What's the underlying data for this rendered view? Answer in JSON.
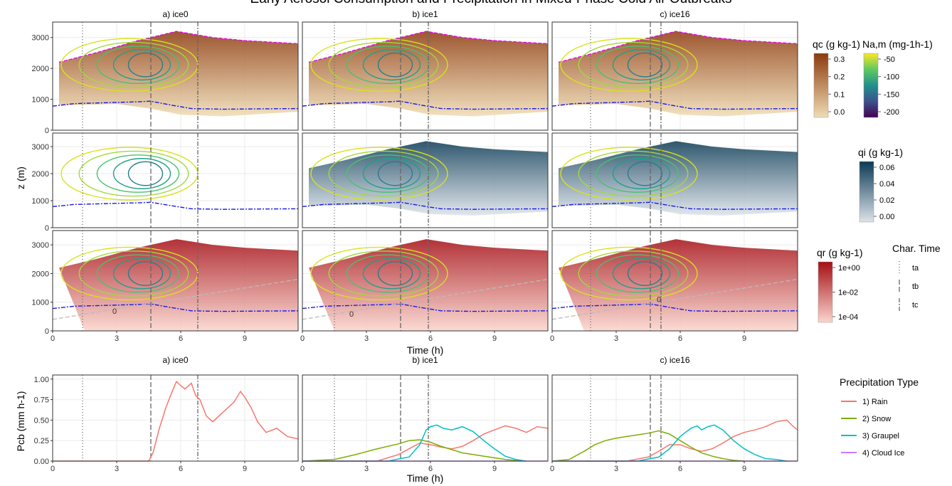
{
  "title": "Early Aerosol Consumption and Precipitation in Mixed-Phase Cold Air Outbreaks",
  "colors": {
    "clip_magenta": "#e600e6",
    "inversion_blue": "#1a1ae6",
    "rain": "#f8766d",
    "snow": "#7cae00",
    "graupel": "#00bfc4",
    "cloud_ice": "#c77cff",
    "qc_low": "#f0dcb4",
    "qc_high": "#8c3a0c",
    "qi_low": "#dde3ea",
    "qi_high": "#0b3a55",
    "qr_low": "#fbd4cc",
    "qr_high": "#a50f15"
  },
  "chart_data": [
    {
      "type": "heatmap",
      "panel": "contour grid (3 rows x 3 simulations)",
      "columns": [
        "a) ice0",
        "b) ice1",
        "c) ice16"
      ],
      "rows": [
        "qc",
        "qi",
        "qr"
      ],
      "ylabel": "z (m)",
      "xlabel": "Time (h)",
      "xlim": [
        0,
        11.5
      ],
      "ylim": [
        0,
        3500
      ],
      "x_ticks": [
        0,
        3,
        6,
        9
      ],
      "y_ticks": [
        0,
        1000,
        2000,
        3000
      ],
      "characteristic_times": {
        "a) ice0": {
          "ta": 1.4,
          "tb": 4.6,
          "tc": 6.8
        },
        "b) ice1": {
          "ta": 1.5,
          "tb": 4.6,
          "tc": 5.9
        },
        "c) ice16": {
          "ta": 1.8,
          "tb": 4.6,
          "tc": 5.1
        }
      },
      "zero_isotherm_label": "0",
      "zero_isotherm_label_pos": {
        "a) ice0": [
          2.9,
          700
        ],
        "b) ice1": [
          2.3,
          600
        ],
        "c) ice16": [
          5.0,
          1100
        ]
      },
      "inversion_height_m": {
        "x": [
          0,
          1,
          2,
          3,
          4,
          4.6,
          5.5,
          6.5,
          8,
          9.5,
          11.5
        ],
        "y": [
          780,
          860,
          880,
          900,
          920,
          940,
          820,
          700,
          680,
          690,
          700
        ]
      },
      "cloud_top_m": {
        "x": [
          0.3,
          2,
          4,
          5.8,
          7.5,
          9,
          11.5
        ],
        "y": [
          2200,
          2500,
          2900,
          3200,
          3000,
          2900,
          2800
        ]
      },
      "cloud_base_m": {
        "x": [
          0.3,
          3,
          4.6,
          6,
          8,
          11.5
        ],
        "y": [
          800,
          850,
          700,
          500,
          450,
          600
        ]
      }
    },
    {
      "type": "line",
      "panel": "precipitation at cloud base",
      "columns": [
        "a) ice0",
        "b) ice1",
        "c) ice16"
      ],
      "ylabel": "Pcb (mm h-1)",
      "xlabel": "Time (h)",
      "xlim": [
        0,
        11.5
      ],
      "ylim": [
        0,
        1.05
      ],
      "x_ticks": [
        0,
        3,
        6,
        9
      ],
      "y_ticks": [
        0.0,
        0.25,
        0.5,
        0.75,
        1.0
      ],
      "y_tick_labels": [
        "0.00",
        "0.25",
        "0.50",
        "0.75",
        "1.00"
      ],
      "characteristic_times": {
        "a) ice0": {
          "ta": 1.4,
          "tb": 4.6,
          "tc": 6.8
        },
        "b) ice1": {
          "ta": 1.5,
          "tb": 4.6,
          "tc": 5.9
        },
        "c) ice16": {
          "ta": 1.8,
          "tb": 4.6,
          "tc": 5.1
        }
      },
      "series": {
        "a) ice0": [
          {
            "name": "1) Rain",
            "x": [
              0,
              4.5,
              4.7,
              5.0,
              5.3,
              5.6,
              5.8,
              6.0,
              6.2,
              6.5,
              6.7,
              6.9,
              7.2,
              7.5,
              8.0,
              8.5,
              8.8,
              9.0,
              9.3,
              9.6,
              10.0,
              10.5,
              11.0,
              11.5
            ],
            "y": [
              0,
              0,
              0.1,
              0.4,
              0.65,
              0.85,
              0.97,
              0.92,
              0.88,
              0.95,
              0.8,
              0.75,
              0.55,
              0.48,
              0.6,
              0.72,
              0.85,
              0.78,
              0.65,
              0.48,
              0.35,
              0.4,
              0.3,
              0.27
            ]
          }
        ],
        "b) ice1": [
          {
            "name": "1) Rain",
            "x": [
              0,
              3.5,
              4.5,
              5.0,
              5.5,
              6.0,
              6.5,
              7.0,
              7.5,
              8.0,
              8.5,
              9.0,
              9.5,
              10.0,
              10.5,
              11.0,
              11.5
            ],
            "y": [
              0,
              0,
              0.08,
              0.15,
              0.22,
              0.2,
              0.17,
              0.15,
              0.18,
              0.25,
              0.33,
              0.38,
              0.43,
              0.4,
              0.35,
              0.42,
              0.4
            ]
          },
          {
            "name": "2) Snow",
            "x": [
              0,
              1.5,
              2.5,
              3.5,
              4.5,
              5.0,
              5.5,
              6.0,
              6.5,
              7.0,
              7.5,
              8.0,
              8.5,
              9.0,
              9.5,
              10.0,
              10.5
            ],
            "y": [
              0,
              0.02,
              0.08,
              0.15,
              0.21,
              0.25,
              0.26,
              0.23,
              0.18,
              0.14,
              0.1,
              0.08,
              0.06,
              0.04,
              0.02,
              0.01,
              0
            ]
          },
          {
            "name": "3) Graupel",
            "x": [
              0,
              4.0,
              5.0,
              5.5,
              5.8,
              6.0,
              6.3,
              6.6,
              7.0,
              7.5,
              8.0,
              8.5,
              9.0,
              9.5,
              10.0,
              10.5
            ],
            "y": [
              0,
              0,
              0.05,
              0.2,
              0.38,
              0.42,
              0.44,
              0.4,
              0.38,
              0.42,
              0.36,
              0.25,
              0.15,
              0.06,
              0.02,
              0
            ]
          },
          {
            "name": "4) Cloud Ice",
            "x": [
              0,
              11.5
            ],
            "y": [
              0,
              0
            ]
          }
        ],
        "c) ice16": [
          {
            "name": "1) Rain",
            "x": [
              0,
              3.5,
              4.5,
              5.0,
              5.5,
              6.0,
              6.5,
              7.0,
              7.5,
              8.0,
              8.5,
              9.0,
              9.5,
              10.0,
              10.5,
              11.0,
              11.3,
              11.5
            ],
            "y": [
              0,
              0,
              0.05,
              0.12,
              0.2,
              0.2,
              0.15,
              0.12,
              0.15,
              0.22,
              0.3,
              0.35,
              0.38,
              0.42,
              0.48,
              0.5,
              0.42,
              0.38
            ]
          },
          {
            "name": "2) Snow",
            "x": [
              0,
              0.8,
              1.5,
              2.0,
              2.5,
              3.0,
              3.5,
              4.0,
              4.5,
              5.0,
              5.5,
              6.0,
              6.5,
              7.0,
              7.5,
              8.0,
              8.5,
              9.0
            ],
            "y": [
              0,
              0.02,
              0.12,
              0.2,
              0.25,
              0.28,
              0.3,
              0.32,
              0.34,
              0.37,
              0.33,
              0.25,
              0.17,
              0.1,
              0.06,
              0.03,
              0.01,
              0
            ]
          },
          {
            "name": "3) Graupel",
            "x": [
              0,
              4.0,
              5.0,
              5.5,
              6.0,
              6.5,
              6.8,
              7.0,
              7.3,
              7.6,
              8.0,
              8.5,
              9.0,
              9.5,
              10.0,
              10.5,
              11.0
            ],
            "y": [
              0,
              0,
              0.05,
              0.15,
              0.3,
              0.4,
              0.43,
              0.38,
              0.42,
              0.44,
              0.38,
              0.25,
              0.15,
              0.08,
              0.03,
              0.02,
              0
            ]
          },
          {
            "name": "4) Cloud Ice",
            "x": [
              0,
              11.5
            ],
            "y": [
              0,
              0
            ]
          }
        ]
      }
    }
  ],
  "legends": {
    "qc": {
      "title": "qc (g kg-1)",
      "ticks": [
        "0.3",
        "0.2",
        "0.1",
        "0.0"
      ]
    },
    "Na": {
      "title": "Na,m (mg-1h-1)",
      "ticks": [
        "-50",
        "-100",
        "-150",
        "-200"
      ]
    },
    "qi": {
      "title": "qi (g kg-1)",
      "ticks": [
        "0.06",
        "0.04",
        "0.02",
        "0.00"
      ]
    },
    "qr": {
      "title": "qr (g kg-1)",
      "ticks": [
        "1e+00",
        "1e-02",
        "1e-04"
      ]
    },
    "char_time": {
      "title": "Char. Time",
      "items": [
        "ta",
        "tb",
        "tc"
      ]
    },
    "precip": {
      "title": "Precipitation Type",
      "items": [
        "1) Rain",
        "2) Snow",
        "3) Graupel",
        "4) Cloud Ice"
      ]
    }
  }
}
